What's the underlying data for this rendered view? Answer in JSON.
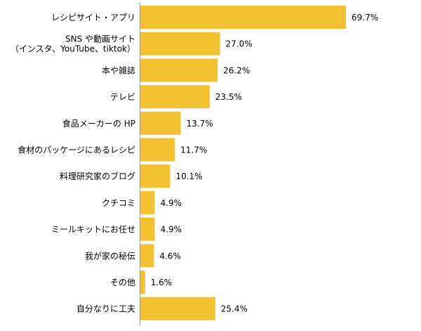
{
  "chart_data": {
    "type": "bar",
    "orientation": "horizontal",
    "categories": [
      [
        "レシピサイト・アプリ"
      ],
      [
        "SNS や動画サイト",
        "（インスタ、YouTube、tiktok）"
      ],
      [
        "本や雑誌"
      ],
      [
        "テレビ"
      ],
      [
        "食品メーカーの HP"
      ],
      [
        "食材のパッケージにあるレシピ"
      ],
      [
        "料理研究家のブログ"
      ],
      [
        "クチコミ"
      ],
      [
        "ミールキットにお任せ"
      ],
      [
        "我が家の秘伝"
      ],
      [
        "その他"
      ],
      [
        "自分なりに工夫"
      ]
    ],
    "values": [
      69.7,
      27.0,
      26.2,
      23.5,
      13.7,
      11.7,
      10.1,
      4.9,
      4.9,
      4.6,
      1.6,
      25.4
    ],
    "value_labels": [
      "69.7%",
      "27.0%",
      "26.2%",
      "23.5%",
      "13.7%",
      "11.7%",
      "10.1%",
      "4.9%",
      "4.9%",
      "4.6%",
      "1.6%",
      "25.4%"
    ],
    "xlim": [
      0,
      72
    ],
    "bar_color": "#F3C031",
    "axis_color": "#999999",
    "grid": false
  }
}
